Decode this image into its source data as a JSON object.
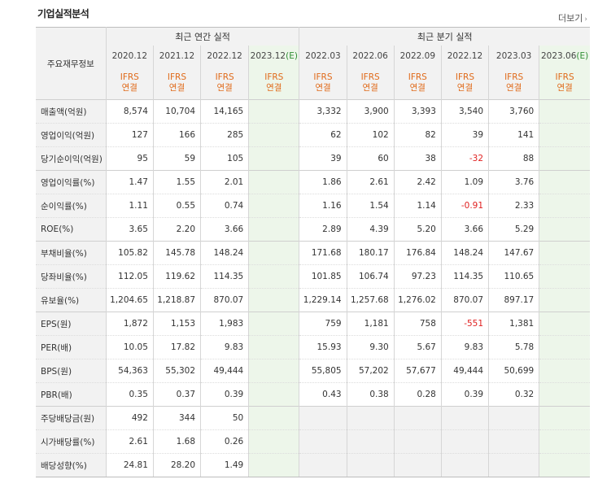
{
  "title": "기업실적분석",
  "more_label": "더보기",
  "header_label": "주요재무정보",
  "groups": {
    "annual": "최근 연간 실적",
    "quarterly": "최근 분기 실적"
  },
  "periods": [
    "2020.12",
    "2021.12",
    "2022.12",
    "2023.12",
    "2022.03",
    "2022.06",
    "2022.09",
    "2022.12",
    "2023.03",
    "2023.06"
  ],
  "estimate_suffix": "(E)",
  "ifrs": [
    "IFRS",
    "연결"
  ],
  "rows": [
    {
      "label": "매출액(억원)",
      "values": [
        "8,574",
        "10,704",
        "14,165",
        "",
        "3,332",
        "3,900",
        "3,393",
        "3,540",
        "3,760",
        ""
      ]
    },
    {
      "label": "영업이익(억원)",
      "values": [
        "127",
        "166",
        "285",
        "",
        "62",
        "102",
        "82",
        "39",
        "141",
        ""
      ]
    },
    {
      "label": "당기순이익(억원)",
      "values": [
        "95",
        "59",
        "105",
        "",
        "39",
        "60",
        "38",
        "-32",
        "88",
        ""
      ]
    },
    {
      "label": "영업이익률(%)",
      "values": [
        "1.47",
        "1.55",
        "2.01",
        "",
        "1.86",
        "2.61",
        "2.42",
        "1.09",
        "3.76",
        ""
      ]
    },
    {
      "label": "순이익률(%)",
      "values": [
        "1.11",
        "0.55",
        "0.74",
        "",
        "1.16",
        "1.54",
        "1.14",
        "-0.91",
        "2.33",
        ""
      ]
    },
    {
      "label": "ROE(%)",
      "values": [
        "3.65",
        "2.20",
        "3.66",
        "",
        "2.89",
        "4.39",
        "5.20",
        "3.66",
        "5.29",
        ""
      ]
    },
    {
      "label": "부채비율(%)",
      "values": [
        "105.82",
        "145.78",
        "148.24",
        "",
        "171.68",
        "180.17",
        "176.84",
        "148.24",
        "147.67",
        ""
      ]
    },
    {
      "label": "당좌비율(%)",
      "values": [
        "112.05",
        "119.62",
        "114.35",
        "",
        "101.85",
        "106.74",
        "97.23",
        "114.35",
        "110.65",
        ""
      ]
    },
    {
      "label": "유보율(%)",
      "values": [
        "1,204.65",
        "1,218.87",
        "870.07",
        "",
        "1,229.14",
        "1,257.68",
        "1,276.02",
        "870.07",
        "897.17",
        ""
      ]
    },
    {
      "label": "EPS(원)",
      "values": [
        "1,872",
        "1,153",
        "1,983",
        "",
        "759",
        "1,181",
        "758",
        "-551",
        "1,381",
        ""
      ]
    },
    {
      "label": "PER(배)",
      "values": [
        "10.05",
        "17.82",
        "9.83",
        "",
        "15.93",
        "9.30",
        "5.67",
        "9.83",
        "5.78",
        ""
      ]
    },
    {
      "label": "BPS(원)",
      "values": [
        "54,363",
        "55,302",
        "49,444",
        "",
        "55,805",
        "57,202",
        "57,677",
        "49,444",
        "50,699",
        ""
      ]
    },
    {
      "label": "PBR(배)",
      "values": [
        "0.35",
        "0.37",
        "0.39",
        "",
        "0.43",
        "0.38",
        "0.28",
        "0.39",
        "0.32",
        ""
      ]
    },
    {
      "label": "주당배당금(원)",
      "values": [
        "492",
        "344",
        "50",
        "",
        "",
        "",
        "",
        "",
        "",
        ""
      ]
    },
    {
      "label": "시가배당률(%)",
      "values": [
        "2.61",
        "1.68",
        "0.26",
        "",
        "",
        "",
        "",
        "",
        "",
        ""
      ]
    },
    {
      "label": "배당성향(%)",
      "values": [
        "24.81",
        "28.20",
        "1.49",
        "",
        "",
        "",
        "",
        "",
        "",
        ""
      ]
    }
  ]
}
